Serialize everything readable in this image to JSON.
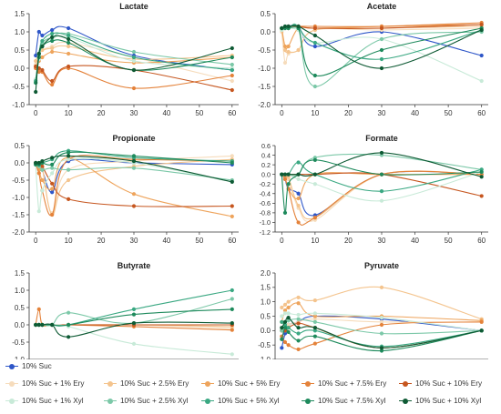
{
  "x_ticks": [
    0,
    10,
    20,
    30,
    40,
    50,
    60
  ],
  "legend": [
    {
      "name": "10% Suc",
      "color": "#2e56c8"
    },
    {
      "name": "10% Suc + 1% Ery",
      "color": "#f6dcbc"
    },
    {
      "name": "10% Suc + 2.5% Ery",
      "color": "#f4c48e"
    },
    {
      "name": "10% Suc + 5% Ery",
      "color": "#eea45c"
    },
    {
      "name": "10% Suc + 7.5% Ery",
      "color": "#e4823a"
    },
    {
      "name": "10% Suc + 10% Ery",
      "color": "#c6561f"
    },
    {
      "name": "10% Suc + 1% Xyl",
      "color": "#c8ead8"
    },
    {
      "name": "10% Suc + 2.5% Xyl",
      "color": "#7cc8a8"
    },
    {
      "name": "10% Suc + 5% Xyl",
      "color": "#3aa882"
    },
    {
      "name": "10% Suc + 7.5% Xyl",
      "color": "#1e8a5c"
    },
    {
      "name": "10% Suc + 10% Xyl",
      "color": "#0e5a34"
    }
  ],
  "chart_data": [
    {
      "type": "line",
      "title": "Lactate",
      "xlabel": "",
      "ylabel": "",
      "x": [
        0,
        1,
        2,
        5,
        10,
        30,
        60
      ],
      "xlim": [
        -2,
        62
      ],
      "ylim": [
        -1.0,
        1.5
      ],
      "yticks": [
        -1.0,
        -0.5,
        0.0,
        0.5,
        1.0,
        1.5
      ],
      "series": [
        {
          "name": "10% Suc",
          "values": [
            0.35,
            1.0,
            0.9,
            1.05,
            1.1,
            0.35,
            -0.05
          ]
        },
        {
          "name": "10% Suc + 1% Ery",
          "values": [
            0.1,
            0.3,
            0.5,
            0.6,
            0.7,
            0.3,
            -0.35
          ]
        },
        {
          "name": "10% Suc + 2.5% Ery",
          "values": [
            0.2,
            0.4,
            0.5,
            0.55,
            0.6,
            0.25,
            0.35
          ]
        },
        {
          "name": "10% Suc + 5% Ery",
          "values": [
            0.05,
            0.2,
            0.3,
            0.45,
            0.4,
            0.15,
            0.3
          ]
        },
        {
          "name": "10% Suc + 7.5% Ery",
          "values": [
            0.0,
            -0.1,
            -0.1,
            -0.45,
            0.0,
            -0.55,
            -0.2
          ]
        },
        {
          "name": "10% Suc + 10% Ery",
          "values": [
            0.05,
            0.0,
            -0.05,
            -0.35,
            0.05,
            -0.05,
            -0.6
          ]
        },
        {
          "name": "10% Suc + 1% Xyl",
          "values": [
            -0.3,
            0.25,
            0.6,
            0.8,
            0.85,
            0.2,
            0.0
          ]
        },
        {
          "name": "10% Suc + 2.5% Xyl",
          "values": [
            -0.4,
            0.35,
            0.7,
            0.85,
            0.95,
            0.45,
            0.1
          ]
        },
        {
          "name": "10% Suc + 5% Xyl",
          "values": [
            -0.35,
            0.4,
            0.75,
            0.95,
            0.9,
            0.3,
            -0.05
          ]
        },
        {
          "name": "10% Suc + 7.5% Xyl",
          "values": [
            -0.4,
            0.3,
            0.6,
            0.75,
            0.7,
            -0.05,
            0.3
          ]
        },
        {
          "name": "10% Suc + 10% Xyl",
          "values": [
            -0.65,
            0.4,
            0.6,
            0.85,
            0.8,
            -0.05,
            0.55
          ]
        }
      ]
    },
    {
      "type": "line",
      "title": "Acetate",
      "xlabel": "",
      "ylabel": "",
      "x": [
        0,
        1,
        2,
        5,
        10,
        30,
        60
      ],
      "xlim": [
        -2,
        62
      ],
      "ylim": [
        -2.0,
        0.5
      ],
      "yticks": [
        -2.0,
        -1.5,
        -1.0,
        -0.5,
        0.0,
        0.5
      ],
      "series": [
        {
          "name": "10% Suc",
          "values": [
            0.1,
            0.12,
            0.15,
            0.15,
            -0.4,
            0.0,
            -0.65
          ]
        },
        {
          "name": "10% Suc + 1% Ery",
          "values": [
            0.0,
            -0.85,
            -0.6,
            -0.5,
            0.05,
            0.05,
            0.1
          ]
        },
        {
          "name": "10% Suc + 2.5% Ery",
          "values": [
            0.05,
            -0.5,
            -0.55,
            -0.5,
            0.05,
            0.1,
            0.15
          ]
        },
        {
          "name": "10% Suc + 5% Ery",
          "values": [
            0.1,
            -0.4,
            -0.4,
            0.1,
            0.1,
            0.15,
            0.2
          ]
        },
        {
          "name": "10% Suc + 7.5% Ery",
          "values": [
            0.1,
            0.1,
            0.1,
            0.15,
            0.15,
            0.15,
            0.25
          ]
        },
        {
          "name": "10% Suc + 10% Ery",
          "values": [
            0.1,
            0.12,
            0.15,
            0.15,
            0.1,
            0.1,
            0.2
          ]
        },
        {
          "name": "10% Suc + 1% Xyl",
          "values": [
            0.05,
            0.1,
            0.1,
            0.05,
            -0.3,
            -0.2,
            -1.35
          ]
        },
        {
          "name": "10% Suc + 2.5% Xyl",
          "values": [
            0.1,
            0.15,
            0.1,
            0.1,
            -1.5,
            -0.2,
            0.0
          ]
        },
        {
          "name": "10% Suc + 5% Xyl",
          "values": [
            0.1,
            0.1,
            0.1,
            0.1,
            -0.3,
            -0.75,
            0.05
          ]
        },
        {
          "name": "10% Suc + 7.5% Xyl",
          "values": [
            0.1,
            0.1,
            0.1,
            0.1,
            -1.2,
            -0.5,
            0.1
          ]
        },
        {
          "name": "10% Suc + 10% Xyl",
          "values": [
            0.1,
            0.15,
            0.15,
            0.15,
            -0.1,
            -1.0,
            0.05
          ]
        }
      ]
    },
    {
      "type": "line",
      "title": "Propionate",
      "xlabel": "",
      "ylabel": "",
      "x": [
        0,
        1,
        2,
        5,
        10,
        30,
        60
      ],
      "xlim": [
        -2,
        62
      ],
      "ylim": [
        -2.0,
        0.5
      ],
      "yticks": [
        -2.0,
        -1.5,
        -1.0,
        -0.5,
        0.0,
        0.5
      ],
      "series": [
        {
          "name": "10% Suc",
          "values": [
            0.0,
            -0.05,
            -0.2,
            -0.85,
            0.05,
            0.0,
            -0.05
          ]
        },
        {
          "name": "10% Suc + 1% Ery",
          "values": [
            0.0,
            -0.05,
            -0.1,
            -1.45,
            -0.2,
            0.05,
            0.2
          ]
        },
        {
          "name": "10% Suc + 2.5% Ery",
          "values": [
            -0.05,
            -0.1,
            -0.15,
            -1.5,
            -0.5,
            -0.1,
            0.1
          ]
        },
        {
          "name": "10% Suc + 5% Ery",
          "values": [
            0.0,
            -0.2,
            -0.5,
            -0.75,
            0.15,
            -0.9,
            -1.55
          ]
        },
        {
          "name": "10% Suc + 7.5% Ery",
          "values": [
            -0.05,
            -0.3,
            -0.8,
            -1.5,
            0.1,
            0.1,
            0.05
          ]
        },
        {
          "name": "10% Suc + 10% Ery",
          "values": [
            0.0,
            -0.05,
            -0.1,
            -0.6,
            -1.05,
            -1.25,
            -1.25
          ]
        },
        {
          "name": "10% Suc + 1% Xyl",
          "values": [
            -0.05,
            -1.4,
            -0.8,
            -0.3,
            0.1,
            0.0,
            -0.55
          ]
        },
        {
          "name": "10% Suc + 2.5% Xyl",
          "values": [
            -0.05,
            -0.1,
            -0.2,
            -0.15,
            -0.2,
            -0.15,
            -0.5
          ]
        },
        {
          "name": "10% Suc + 5% Xyl",
          "values": [
            0.0,
            -0.05,
            0.0,
            0.1,
            0.35,
            0.15,
            0.05
          ]
        },
        {
          "name": "10% Suc + 7.5% Xyl",
          "values": [
            -0.05,
            -0.05,
            0.0,
            -0.05,
            0.3,
            0.2,
            0.0
          ]
        },
        {
          "name": "10% Suc + 10% Xyl",
          "values": [
            0.0,
            0.0,
            0.05,
            0.15,
            0.2,
            0.05,
            -0.55
          ]
        }
      ]
    },
    {
      "type": "line",
      "title": "Formate",
      "xlabel": "",
      "ylabel": "",
      "x": [
        0,
        1,
        2,
        5,
        10,
        30,
        60
      ],
      "xlim": [
        -2,
        62
      ],
      "ylim": [
        -1.2,
        0.6
      ],
      "yticks": [
        -1.2,
        -1.0,
        -0.8,
        -0.6,
        -0.4,
        -0.2,
        0.0,
        0.2,
        0.4,
        0.6
      ],
      "series": [
        {
          "name": "10% Suc",
          "values": [
            0.0,
            -0.1,
            -0.3,
            -0.4,
            -0.85,
            0.0,
            0.0
          ]
        },
        {
          "name": "10% Suc + 1% Ery",
          "values": [
            0.0,
            0.0,
            -0.1,
            -0.7,
            -0.95,
            0.0,
            0.0
          ]
        },
        {
          "name": "10% Suc + 2.5% Ery",
          "values": [
            0.0,
            0.0,
            -0.05,
            -0.65,
            -0.9,
            0.0,
            0.0
          ]
        },
        {
          "name": "10% Suc + 5% Ery",
          "values": [
            0.0,
            -0.05,
            -0.3,
            -0.5,
            0.0,
            0.0,
            0.0
          ]
        },
        {
          "name": "10% Suc + 7.5% Ery",
          "values": [
            0.0,
            -0.1,
            -0.3,
            -1.0,
            -0.9,
            0.0,
            0.0
          ]
        },
        {
          "name": "10% Suc + 10% Ery",
          "values": [
            0.0,
            0.0,
            0.0,
            0.0,
            0.0,
            0.0,
            -0.45
          ]
        },
        {
          "name": "10% Suc + 1% Xyl",
          "values": [
            0.0,
            0.0,
            0.0,
            -0.1,
            -0.2,
            -0.55,
            0.05
          ]
        },
        {
          "name": "10% Suc + 2.5% Xyl",
          "values": [
            0.0,
            0.0,
            0.0,
            0.0,
            0.35,
            0.4,
            0.1
          ]
        },
        {
          "name": "10% Suc + 5% Xyl",
          "values": [
            0.0,
            0.0,
            0.0,
            0.25,
            0.0,
            -0.35,
            0.1
          ]
        },
        {
          "name": "10% Suc + 7.5% Xyl",
          "values": [
            0.0,
            -0.8,
            -0.2,
            0.0,
            0.3,
            0.0,
            0.05
          ]
        },
        {
          "name": "10% Suc + 10% Xyl",
          "values": [
            0.0,
            0.0,
            0.0,
            0.0,
            0.0,
            0.45,
            -0.05
          ]
        }
      ]
    },
    {
      "type": "line",
      "title": "Butyrate",
      "xlabel": "",
      "ylabel": "",
      "x": [
        0,
        1,
        2,
        5,
        10,
        30,
        60
      ],
      "xlim": [
        -2,
        62
      ],
      "ylim": [
        -1.0,
        1.5
      ],
      "yticks": [
        -1.0,
        -0.5,
        0.0,
        0.5,
        1.0,
        1.5
      ],
      "series": [
        {
          "name": "10% Suc",
          "values": [
            0.0,
            0.0,
            0.0,
            0.0,
            0.0,
            0.0,
            0.0
          ]
        },
        {
          "name": "10% Suc + 1% Ery",
          "values": [
            0.0,
            0.0,
            0.0,
            0.0,
            0.0,
            0.0,
            -0.1
          ]
        },
        {
          "name": "10% Suc + 2.5% Ery",
          "values": [
            0.0,
            0.0,
            0.0,
            0.0,
            0.0,
            0.0,
            -0.05
          ]
        },
        {
          "name": "10% Suc + 5% Ery",
          "values": [
            0.0,
            0.0,
            0.0,
            0.0,
            0.0,
            0.0,
            0.0
          ]
        },
        {
          "name": "10% Suc + 7.5% Ery",
          "values": [
            0.0,
            0.45,
            0.0,
            0.0,
            0.0,
            -0.05,
            -0.15
          ]
        },
        {
          "name": "10% Suc + 10% Ery",
          "values": [
            0.0,
            0.0,
            0.0,
            0.0,
            0.0,
            0.0,
            0.0
          ]
        },
        {
          "name": "10% Suc + 1% Xyl",
          "values": [
            0.0,
            0.0,
            0.0,
            0.0,
            -0.05,
            -0.55,
            -0.85
          ]
        },
        {
          "name": "10% Suc + 2.5% Xyl",
          "values": [
            0.0,
            0.0,
            0.0,
            0.0,
            0.35,
            0.05,
            0.75
          ]
        },
        {
          "name": "10% Suc + 5% Xyl",
          "values": [
            0.0,
            0.0,
            0.0,
            0.0,
            0.0,
            0.45,
            1.0
          ]
        },
        {
          "name": "10% Suc + 7.5% Xyl",
          "values": [
            0.0,
            0.0,
            0.0,
            0.0,
            0.0,
            0.3,
            0.45
          ]
        },
        {
          "name": "10% Suc + 10% Xyl",
          "values": [
            0.0,
            0.0,
            0.0,
            0.0,
            -0.35,
            0.05,
            0.05
          ]
        }
      ]
    },
    {
      "type": "line",
      "title": "Pyruvate",
      "xlabel": "",
      "ylabel": "",
      "x": [
        0,
        1,
        2,
        5,
        10,
        30,
        60
      ],
      "xlim": [
        -2,
        62
      ],
      "ylim": [
        -1.0,
        2.0
      ],
      "yticks": [
        -1.0,
        -0.5,
        0.0,
        0.5,
        1.0,
        1.5,
        2.0
      ],
      "series": [
        {
          "name": "10% Suc",
          "values": [
            -0.6,
            -0.1,
            0.2,
            0.3,
            0.5,
            0.4,
            0.0
          ]
        },
        {
          "name": "10% Suc + 1% Ery",
          "values": [
            0.0,
            0.0,
            0.2,
            0.3,
            0.4,
            0.3,
            0.3
          ]
        },
        {
          "name": "10% Suc + 2.5% Ery",
          "values": [
            0.8,
            0.9,
            1.0,
            1.15,
            1.05,
            1.5,
            0.4
          ]
        },
        {
          "name": "10% Suc + 5% Ery",
          "values": [
            0.3,
            0.7,
            0.8,
            0.95,
            0.5,
            0.5,
            0.35
          ]
        },
        {
          "name": "10% Suc + 7.5% Ery",
          "values": [
            -0.2,
            -0.4,
            -0.5,
            -0.65,
            -0.45,
            0.2,
            0.3
          ]
        },
        {
          "name": "10% Suc + 10% Ery",
          "values": [
            0.0,
            0.0,
            0.1,
            0.25,
            0.1,
            -0.6,
            0.0
          ]
        },
        {
          "name": "10% Suc + 1% Xyl",
          "values": [
            0.5,
            0.6,
            0.6,
            0.55,
            0.6,
            0.45,
            0.0
          ]
        },
        {
          "name": "10% Suc + 2.5% Xyl",
          "values": [
            0.0,
            0.2,
            0.35,
            0.4,
            0.3,
            -0.1,
            0.0
          ]
        },
        {
          "name": "10% Suc + 5% Xyl",
          "values": [
            0.3,
            0.2,
            0.1,
            -0.1,
            0.0,
            -0.55,
            0.0
          ]
        },
        {
          "name": "10% Suc + 7.5% Xyl",
          "values": [
            -0.3,
            0.1,
            -0.05,
            -0.35,
            -0.2,
            -0.7,
            0.0
          ]
        },
        {
          "name": "10% Suc + 10% Xyl",
          "values": [
            0.1,
            0.3,
            0.45,
            0.1,
            0.1,
            -0.6,
            0.0
          ]
        }
      ]
    }
  ]
}
